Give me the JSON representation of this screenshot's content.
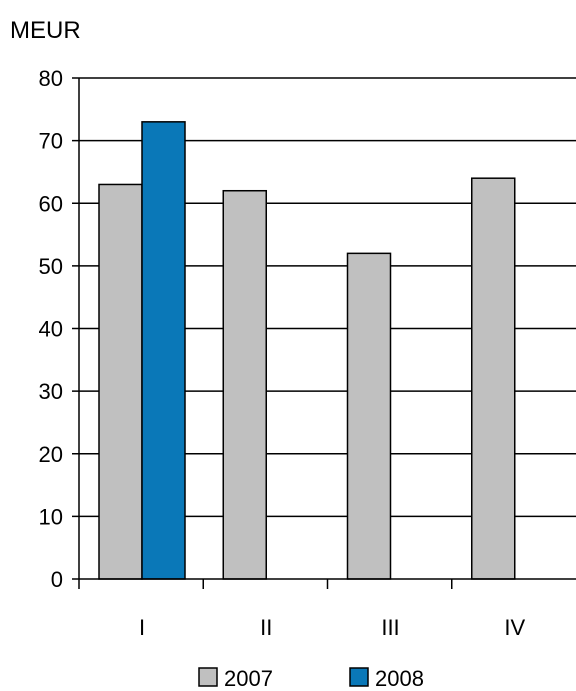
{
  "chart_data": {
    "type": "bar",
    "unit_label": "MEUR",
    "categories": [
      "I",
      "II",
      "III",
      "IV"
    ],
    "series": [
      {
        "name": "2007",
        "values": [
          63,
          62,
          52,
          64
        ],
        "color": "#c0c0c0"
      },
      {
        "name": "2008",
        "values": [
          73,
          null,
          null,
          null
        ],
        "color": "#0a78b8"
      }
    ],
    "ylim": [
      0,
      80
    ],
    "yticks": [
      "0",
      "10",
      "20",
      "30",
      "40",
      "50",
      "60",
      "70",
      "80"
    ],
    "grid": true,
    "legend": "bottom"
  }
}
